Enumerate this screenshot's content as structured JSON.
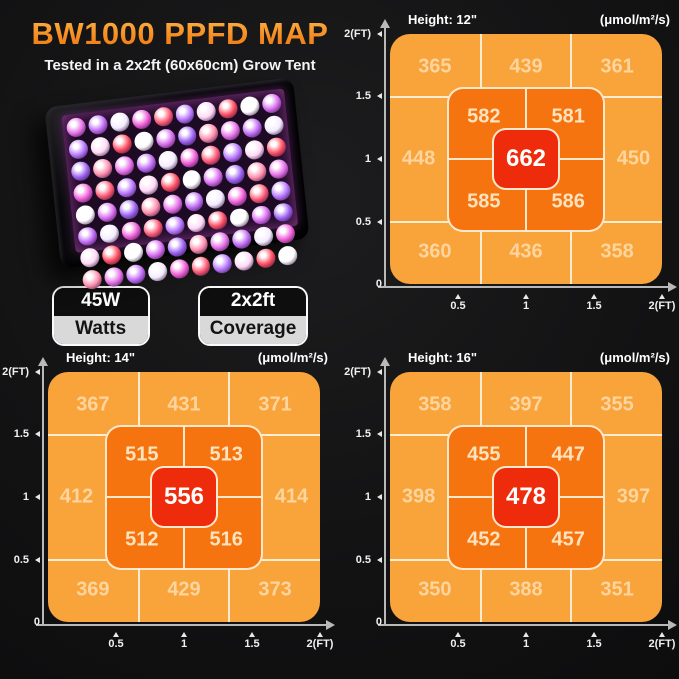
{
  "header": {
    "title": "BW1000 PPFD MAP",
    "subtitle": "Tested in a 2x2ft (60x60cm) Grow Tent"
  },
  "product": {
    "name": "LED grow light panel"
  },
  "badges": [
    {
      "value": "45W",
      "label": "Watts"
    },
    {
      "value": "2x2ft",
      "label": "Coverage"
    }
  ],
  "chart_data": [
    {
      "type": "heatmap",
      "title": "Height: 12\"",
      "unit": "(μmol/m²/s)",
      "x_ticks": [
        "0.5",
        "1",
        "1.5",
        "2(FT)"
      ],
      "y_ticks": [
        "2(FT)",
        "1.5",
        "1",
        "0.5",
        "0"
      ],
      "x_range_ft": [
        0,
        2
      ],
      "y_range_ft": [
        0,
        2
      ],
      "values": {
        "outer_top": [
          "365",
          "439",
          "361"
        ],
        "mid_left": "448",
        "mid_right": "450",
        "outer_bottom": [
          "360",
          "436",
          "358"
        ],
        "inner": [
          "582",
          "581",
          "585",
          "586"
        ],
        "center": "662"
      }
    },
    {
      "type": "heatmap",
      "title": "Height: 14\"",
      "unit": "(μmol/m²/s)",
      "x_ticks": [
        "0.5",
        "1",
        "1.5",
        "2(FT)"
      ],
      "y_ticks": [
        "2(FT)",
        "1.5",
        "1",
        "0.5",
        "0"
      ],
      "x_range_ft": [
        0,
        2
      ],
      "y_range_ft": [
        0,
        2
      ],
      "values": {
        "outer_top": [
          "367",
          "431",
          "371"
        ],
        "mid_left": "412",
        "mid_right": "414",
        "outer_bottom": [
          "369",
          "429",
          "373"
        ],
        "inner": [
          "515",
          "513",
          "512",
          "516"
        ],
        "center": "556"
      }
    },
    {
      "type": "heatmap",
      "title": "Height: 16\"",
      "unit": "(μmol/m²/s)",
      "x_ticks": [
        "0.5",
        "1",
        "1.5",
        "2(FT)"
      ],
      "y_ticks": [
        "2(FT)",
        "1.5",
        "1",
        "0.5",
        "0"
      ],
      "x_range_ft": [
        0,
        2
      ],
      "y_range_ft": [
        0,
        2
      ],
      "values": {
        "outer_top": [
          "358",
          "397",
          "355"
        ],
        "mid_left": "398",
        "mid_right": "397",
        "outer_bottom": [
          "350",
          "388",
          "351"
        ],
        "inner": [
          "455",
          "447",
          "452",
          "457"
        ],
        "center": "478"
      }
    }
  ],
  "colors": {
    "accent_orange": "#F58A1F",
    "heat_outer": "#F9A33B",
    "heat_inner": "#F5740F",
    "heat_center": "#EE2B0B",
    "grid_line": "#FFF1DB",
    "axis": "#B9B9B9",
    "background": "#131314"
  }
}
